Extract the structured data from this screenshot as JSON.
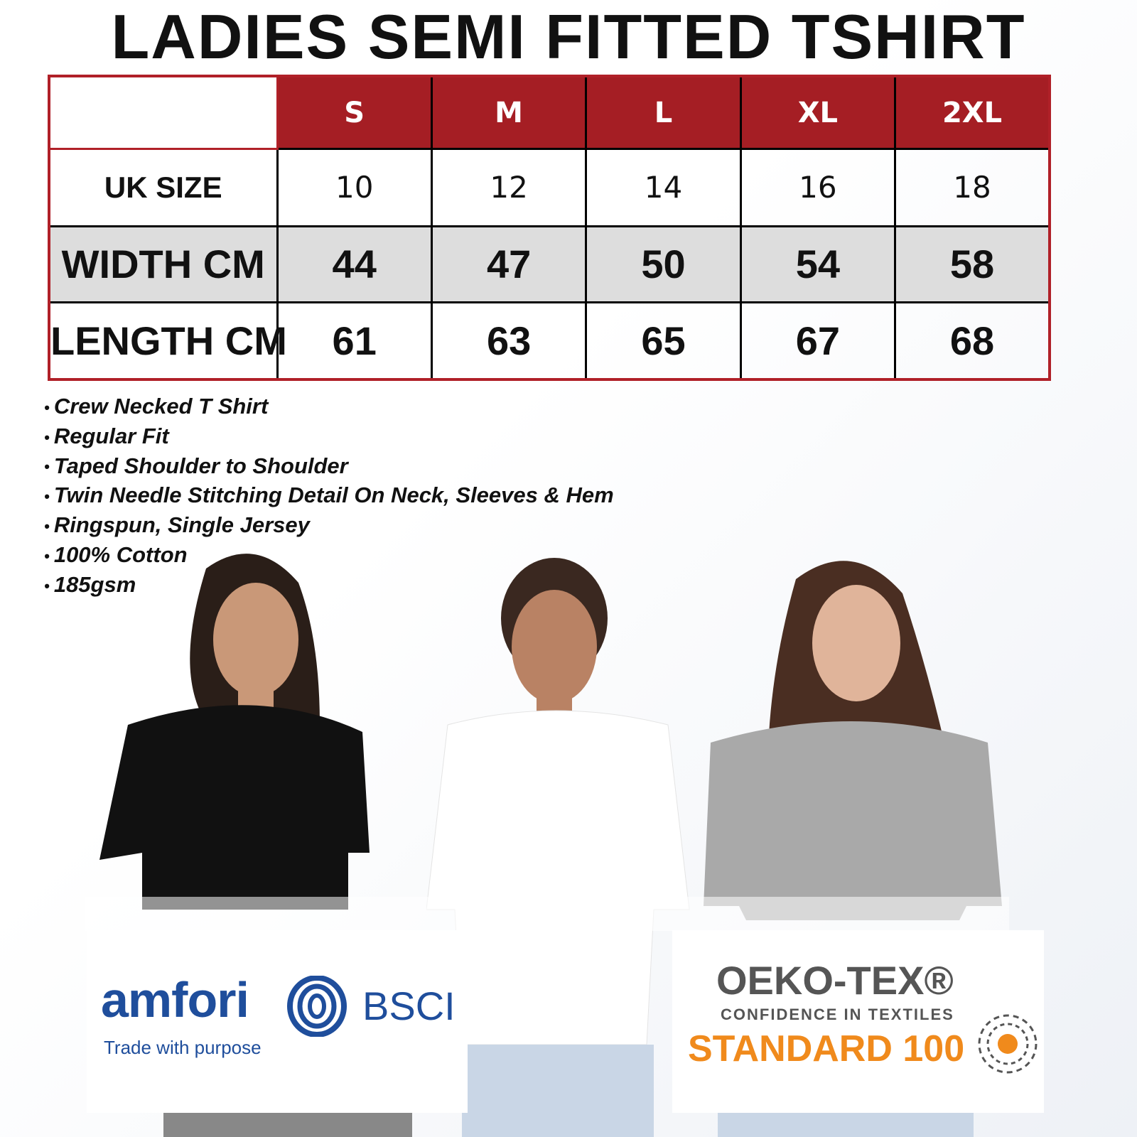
{
  "title": "LADIES SEMI FITTED TSHIRT",
  "sizes": [
    "S",
    "M",
    "L",
    "XL",
    "2XL"
  ],
  "rows": [
    {
      "label": "UK SIZE",
      "values": [
        "10",
        "12",
        "14",
        "16",
        "18"
      ]
    },
    {
      "label": "WIDTH CM",
      "values": [
        "44",
        "47",
        "50",
        "54",
        "58"
      ]
    },
    {
      "label": "LENGTH CM",
      "values": [
        "61",
        "63",
        "65",
        "67",
        "68"
      ]
    }
  ],
  "features": [
    "Crew Necked T Shirt",
    "Regular Fit",
    "Taped Shoulder to Shoulder",
    "Twin Needle Stitching Detail On Neck, Sleeves & Hem",
    "Ringspun, Single Jersey",
    "100% Cotton",
    "185gsm"
  ],
  "logos": {
    "amfori": {
      "name": "amfori",
      "suffix": "BSCI",
      "tagline": "Trade with purpose",
      "color": "#1f4e9c"
    },
    "oeko": {
      "name": "OEKO-TEX®",
      "tagline": "CONFIDENCE IN TEXTILES",
      "standard": "STANDARD 100",
      "color": "#f08a1c"
    }
  },
  "colors": {
    "header_red": "#a51e24",
    "width_row_grey": "#dddddd"
  }
}
